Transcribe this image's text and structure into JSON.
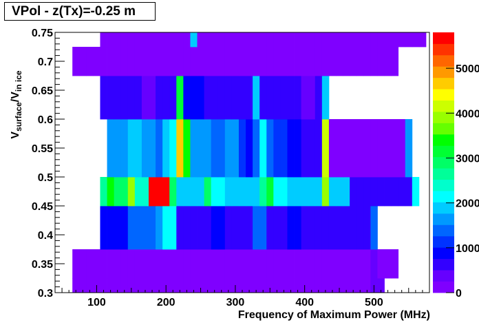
{
  "chart_data": {
    "type": "heatmap",
    "title": "VPol - z(Tx)=-0.25 m",
    "xlabel": "Frequency of Maximum Power (MHz)",
    "ylabel_parts": {
      "base_1": "V",
      "sub_1": "surface",
      "sep": "/V",
      "sub_2": "in ice"
    },
    "xlim": [
      40,
      580
    ],
    "ylim": [
      0.3,
      0.75
    ],
    "xticks": [
      {
        "v": 100,
        "label": "100"
      },
      {
        "v": 200,
        "label": "200"
      },
      {
        "v": 300,
        "label": "300"
      },
      {
        "v": 400,
        "label": "400"
      },
      {
        "v": 500,
        "label": "500"
      }
    ],
    "yticks": [
      {
        "v": 0.3,
        "label": "0.3"
      },
      {
        "v": 0.35,
        "label": "0.35"
      },
      {
        "v": 0.4,
        "label": "0.4"
      },
      {
        "v": 0.45,
        "label": "0.45"
      },
      {
        "v": 0.5,
        "label": "0.5"
      },
      {
        "v": 0.55,
        "label": "0.55"
      },
      {
        "v": 0.6,
        "label": "0.6"
      },
      {
        "v": 0.65,
        "label": "0.65"
      },
      {
        "v": 0.7,
        "label": "0.7"
      },
      {
        "v": 0.75,
        "label": "0.75"
      }
    ],
    "x_bin_width": 10,
    "y_bin_edges": [
      0.3,
      0.325,
      0.375,
      0.45,
      0.5,
      0.6,
      0.675,
      0.725,
      0.75
    ],
    "colorbar": {
      "min": 0,
      "max": 5800,
      "ticks": [
        {
          "v": 0,
          "label": "0"
        },
        {
          "v": 1000,
          "label": "1000"
        },
        {
          "v": 2000,
          "label": "2000"
        },
        {
          "v": 3000,
          "label": "3000"
        },
        {
          "v": 4000,
          "label": "4000"
        },
        {
          "v": 5000,
          "label": "5000"
        }
      ],
      "palette": [
        "#7f00ff",
        "#6600ff",
        "#3300ff",
        "#0000ff",
        "#0033ff",
        "#0066ff",
        "#0099ff",
        "#00ccff",
        "#00ffff",
        "#00ffcc",
        "#00ff99",
        "#00ff66",
        "#00ff33",
        "#00ff00",
        "#66ff00",
        "#99ff00",
        "#ccff00",
        "#ffff00",
        "#ffcc00",
        "#ff9900",
        "#ff6600",
        "#ff3300",
        "#ff0000"
      ]
    },
    "rows": [
      {
        "y0": 0.3,
        "y1": 0.325,
        "x0": 65,
        "values": [
          50,
          50,
          50,
          50,
          50,
          50,
          50,
          50,
          50,
          50,
          50,
          50,
          50,
          50,
          50,
          50,
          50,
          50,
          50,
          50,
          50,
          50,
          50,
          50,
          50,
          50,
          50,
          50,
          50,
          50,
          50,
          50,
          50,
          50,
          50,
          50,
          50,
          50,
          50,
          50,
          50,
          50,
          50,
          300,
          300
        ]
      },
      {
        "y0": 0.325,
        "y1": 0.375,
        "x0": 65,
        "values": [
          50,
          50,
          50,
          50,
          50,
          50,
          50,
          50,
          50,
          50,
          50,
          50,
          50,
          50,
          50,
          50,
          50,
          50,
          50,
          50,
          50,
          50,
          50,
          50,
          50,
          50,
          50,
          50,
          50,
          50,
          50,
          50,
          50,
          50,
          50,
          50,
          50,
          50,
          50,
          50,
          50,
          50,
          50,
          300,
          50,
          50,
          50
        ]
      },
      {
        "y0": 0.375,
        "y1": 0.45,
        "x0": 105,
        "values": [
          900,
          900,
          900,
          900,
          1300,
          1300,
          1300,
          1300,
          1700,
          2200,
          2200,
          600,
          600,
          600,
          600,
          600,
          1000,
          1000,
          600,
          600,
          600,
          600,
          1300,
          1300,
          600,
          600,
          600,
          900,
          900,
          600,
          600,
          600,
          600,
          600,
          600,
          600,
          600,
          600,
          600,
          1500
        ]
      },
      {
        "y0": 0.45,
        "y1": 0.5,
        "x0": 105,
        "values": [
          2700,
          3300,
          3000,
          3000,
          3800,
          2500,
          2500,
          5800,
          5800,
          5800,
          3000,
          2000,
          2000,
          1900,
          1900,
          2900,
          2200,
          2200,
          2000,
          2000,
          2000,
          2000,
          2000,
          2700,
          3100,
          2200,
          2200,
          1800,
          1800,
          1800,
          1800,
          1800,
          4000,
          1800,
          1800,
          1800,
          600,
          600,
          600,
          600,
          600,
          600,
          600,
          600,
          600,
          2200
        ]
      },
      {
        "y0": 0.5,
        "y1": 0.6,
        "x0": 115,
        "values": [
          1600,
          1600,
          1600,
          2000,
          2000,
          1600,
          1600,
          1300,
          1800,
          2100,
          4700,
          3500,
          1700,
          1700,
          1700,
          1300,
          1300,
          1700,
          1700,
          1100,
          1000,
          1300,
          2100,
          1500,
          1100,
          1100,
          1000,
          800,
          600,
          600,
          700,
          4200,
          50,
          50,
          50,
          50,
          50,
          50,
          50,
          50,
          50,
          50,
          50,
          1700
        ]
      },
      {
        "y0": 0.6,
        "y1": 0.675,
        "x0": 105,
        "values": [
          700,
          700,
          700,
          700,
          700,
          700,
          400,
          400,
          700,
          700,
          700,
          3200,
          1000,
          1000,
          1000,
          700,
          700,
          700,
          700,
          700,
          700,
          700,
          2000,
          700,
          700,
          700,
          600,
          700,
          700,
          400,
          400,
          700,
          1900
        ]
      },
      {
        "y0": 0.675,
        "y1": 0.725,
        "x0": 65,
        "values": [
          50,
          50,
          50,
          50,
          50,
          50,
          50,
          50,
          50,
          50,
          50,
          50,
          50,
          50,
          50,
          50,
          50,
          50,
          50,
          50,
          50,
          50,
          50,
          50,
          50,
          50,
          50,
          50,
          50,
          50,
          50,
          50,
          50,
          50,
          50,
          50,
          50,
          50,
          50,
          50,
          50,
          50,
          50,
          50,
          50,
          50,
          50
        ]
      },
      {
        "y0": 0.725,
        "y1": 0.75,
        "x0": 105,
        "values": [
          50,
          50,
          50,
          50,
          50,
          50,
          50,
          50,
          50,
          50,
          50,
          50,
          50,
          2000,
          50,
          50,
          50,
          50,
          50,
          50,
          50,
          50,
          50,
          50,
          50,
          50,
          50,
          50,
          50,
          50,
          50,
          50,
          50,
          50,
          50,
          50,
          50,
          50,
          50,
          50,
          50,
          50,
          50,
          50,
          50,
          50,
          50,
          50,
          50
        ]
      }
    ]
  }
}
